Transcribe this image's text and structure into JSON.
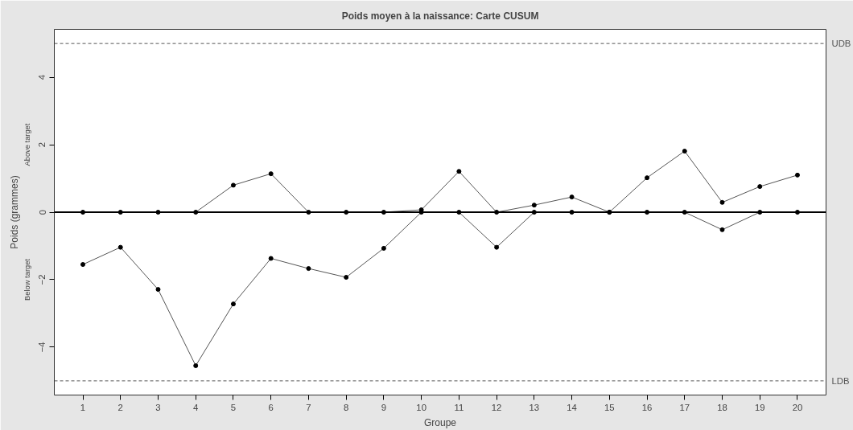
{
  "chart_data": {
    "type": "line",
    "title": "Poids moyen à la naissance: Carte CUSUM",
    "xlabel": "Groupe",
    "ylabel": "Poids (grammes)",
    "x": [
      1,
      2,
      3,
      4,
      5,
      6,
      7,
      8,
      9,
      10,
      11,
      12,
      13,
      14,
      15,
      16,
      17,
      18,
      19,
      20
    ],
    "series": [
      {
        "color": "#000000",
        "values": [
          0,
          0,
          0,
          0,
          0.8,
          1.14,
          0,
          0,
          0,
          0.07,
          1.21,
          0,
          0.21,
          0.45,
          0,
          1.02,
          1.81,
          0.29,
          0.76,
          1.1
        ]
      },
      {
        "color": "#000000",
        "values": [
          -1.55,
          -1.04,
          -2.29,
          -4.55,
          -2.72,
          -1.37,
          -1.67,
          -1.93,
          -1.07,
          0,
          0,
          -1.04,
          0,
          0,
          0,
          0,
          0,
          -0.52,
          0,
          0
        ]
      }
    ],
    "xlim": [
      0.24,
      20.76
    ],
    "ylim": [
      -5.42,
      5.42
    ],
    "xticks": [
      1,
      2,
      3,
      4,
      5,
      6,
      7,
      8,
      9,
      10,
      11,
      12,
      13,
      14,
      15,
      16,
      17,
      18,
      19,
      20
    ],
    "yticks": [
      -4,
      -2,
      0,
      2,
      4
    ],
    "ref_lines": [
      {
        "axis": "y",
        "value": 0,
        "color": "#000000",
        "line_style": "solid"
      },
      {
        "axis": "y",
        "value": 5,
        "label": "UDB",
        "color": "#555555",
        "line_style": "dashed"
      },
      {
        "axis": "y",
        "value": -5,
        "label": "LDB",
        "color": "#555555",
        "line_style": "dashed"
      }
    ],
    "annotations": [
      "Above target",
      "Below target"
    ],
    "marker": "circle",
    "grid": false
  }
}
